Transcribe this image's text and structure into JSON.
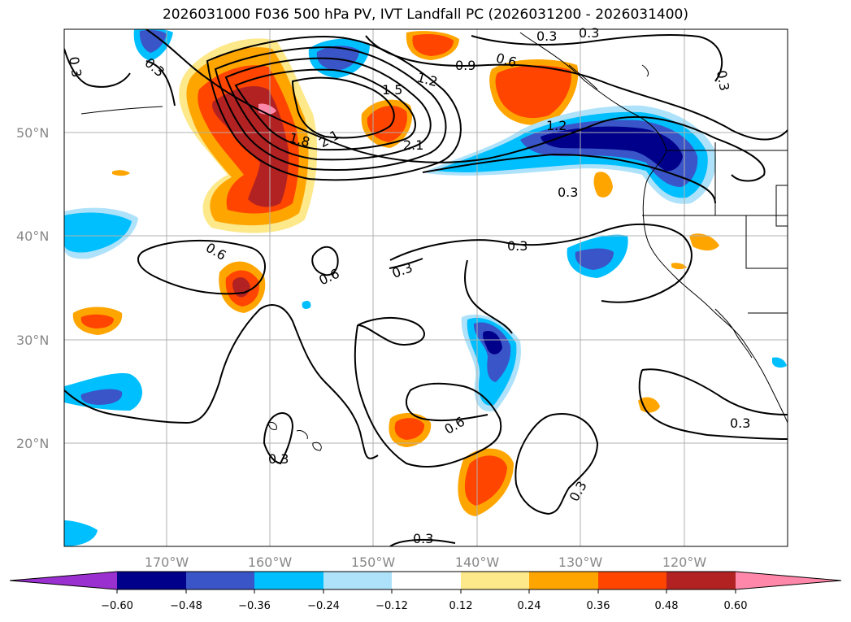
{
  "title": "2026031000 F036 500 hPa PV, IVT Landfall PC (2026031200 - 2026031400)",
  "map": {
    "lat_labels": [
      "50°N",
      "40°N",
      "30°N",
      "20°N"
    ],
    "lon_labels": [
      "170°W",
      "160°W",
      "150°W",
      "140°W",
      "130°W",
      "120°W"
    ],
    "contour_labels": [
      "0.3",
      "0.3",
      "0.3",
      "0.3",
      "0.3",
      "0.3",
      "0.3",
      "0.3",
      "0.3",
      "0.3",
      "0.3",
      "0.3",
      "0.6",
      "0.6",
      "0.6",
      "0.6",
      "0.9",
      "1.2",
      "1.2",
      "1.5",
      "1.8",
      "2.1",
      "2.1"
    ]
  },
  "colorbar": {
    "ticks": [
      "−0.60",
      "−0.48",
      "−0.36",
      "−0.24",
      "−0.12",
      "0.12",
      "0.24",
      "0.36",
      "0.48",
      "0.60"
    ],
    "colors": {
      "lt_-060": "#9b30d0",
      "-060_-048": "#00008b",
      "-048_-036": "#3a55c8",
      "-036_-024": "#00bfff",
      "-024_-012": "#aee2fa",
      "-012_012": "#ffffff",
      "012_024": "#fde88a",
      "024_036": "#ffa500",
      "036_048": "#ff4500",
      "048_060": "#b22222",
      "gt_060": "#ff88aa"
    }
  }
}
